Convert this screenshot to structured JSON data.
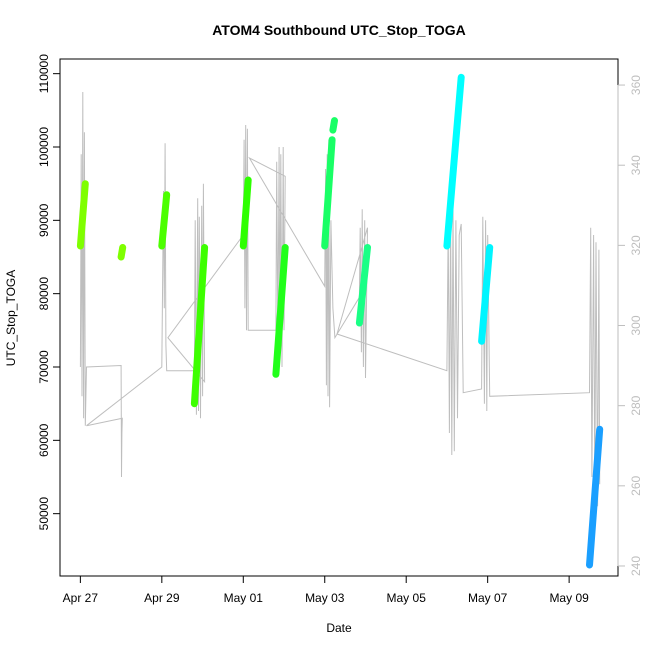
{
  "chart_data": {
    "type": "scatter",
    "title": "ATOM4 Southbound UTC_Stop_TOGA",
    "xlabel": "Date",
    "ylabel": "UTC_Stop_TOGA",
    "x_ticks": [
      "Apr 27",
      "Apr 29",
      "May 01",
      "May 03",
      "May 05",
      "May 07",
      "May 09"
    ],
    "x_tick_days": [
      0,
      2,
      4,
      6,
      8,
      10,
      12
    ],
    "xlim_days": [
      -0.5,
      13.2
    ],
    "y_ticks": [
      50000,
      60000,
      70000,
      80000,
      90000,
      100000,
      110000
    ],
    "ylim": [
      41500,
      112000
    ],
    "y2_ticks": [
      240,
      260,
      280,
      300,
      320,
      340,
      360
    ],
    "y2lim": [
      237.5,
      366.5
    ],
    "grid": false,
    "series": [
      {
        "color": "#7fff00",
        "x0": 0.0,
        "x1": 0.12,
        "y0": 86500,
        "y1": 95000
      },
      {
        "color": "#7fff00",
        "x0": 1.0,
        "x1": 1.04,
        "y0": 85000,
        "y1": 86300
      },
      {
        "color": "#4cff00",
        "x0": 2.0,
        "x1": 2.12,
        "y0": 86500,
        "y1": 93500
      },
      {
        "color": "#3dff00",
        "x0": 2.8,
        "x1": 3.05,
        "y0": 65000,
        "y1": 86300
      },
      {
        "color": "#2eff00",
        "x0": 4.0,
        "x1": 4.12,
        "y0": 86500,
        "y1": 95500
      },
      {
        "color": "#21ff1a",
        "x0": 4.8,
        "x1": 5.03,
        "y0": 69000,
        "y1": 86300
      },
      {
        "color": "#19ff66",
        "x0": 6.0,
        "x1": 6.18,
        "y0": 86500,
        "y1": 101000
      },
      {
        "color": "#19ff66",
        "x0": 6.2,
        "x1": 6.24,
        "y0": 102300,
        "y1": 103600
      },
      {
        "color": "#1aff86",
        "x0": 6.85,
        "x1": 7.05,
        "y0": 76000,
        "y1": 86300
      },
      {
        "color": "#00ffff",
        "x0": 9.0,
        "x1": 9.35,
        "y0": 86500,
        "y1": 109500
      },
      {
        "color": "#00f5ff",
        "x0": 9.85,
        "x1": 10.05,
        "y0": 73500,
        "y1": 86300
      },
      {
        "color": "#1a9fff",
        "x0": 12.5,
        "x1": 12.75,
        "y0": 43000,
        "y1": 61500
      }
    ],
    "secondary_series": {
      "color": "#bebebe",
      "points": [
        [
          0.0,
          70000
        ],
        [
          0.02,
          99000
        ],
        [
          0.04,
          66000
        ],
        [
          0.06,
          107500
        ],
        [
          0.08,
          63000
        ],
        [
          0.1,
          102000
        ],
        [
          0.12,
          62000
        ],
        [
          0.15,
          70000
        ],
        [
          1.0,
          70200
        ],
        [
          1.01,
          55000
        ],
        [
          1.02,
          61000
        ],
        [
          1.03,
          63000
        ],
        [
          0.15,
          62000
        ],
        [
          2.0,
          70000
        ],
        [
          2.04,
          94000
        ],
        [
          2.06,
          78000
        ],
        [
          2.08,
          100500
        ],
        [
          2.1,
          73000
        ],
        [
          2.12,
          69500
        ],
        [
          2.3,
          69500
        ],
        [
          2.8,
          69500
        ],
        [
          2.82,
          90000
        ],
        [
          2.85,
          63500
        ],
        [
          2.88,
          93000
        ],
        [
          2.9,
          64000
        ],
        [
          2.92,
          90500
        ],
        [
          2.95,
          63000
        ],
        [
          2.98,
          92000
        ],
        [
          3.0,
          66000
        ],
        [
          3.02,
          95000
        ],
        [
          3.05,
          68000
        ],
        [
          2.15,
          74000
        ],
        [
          4.0,
          88000
        ],
        [
          4.02,
          101000
        ],
        [
          4.04,
          78000
        ],
        [
          4.06,
          103000
        ],
        [
          4.08,
          75000
        ],
        [
          4.1,
          102500
        ],
        [
          4.12,
          75000
        ],
        [
          4.8,
          75000
        ],
        [
          4.82,
          98000
        ],
        [
          4.85,
          73000
        ],
        [
          4.88,
          100000
        ],
        [
          4.9,
          72000
        ],
        [
          4.92,
          99000
        ],
        [
          4.95,
          70000
        ],
        [
          4.98,
          100000
        ],
        [
          5.0,
          75000
        ],
        [
          5.03,
          96000
        ],
        [
          4.15,
          98500
        ],
        [
          6.0,
          81000
        ],
        [
          6.02,
          97000
        ],
        [
          6.04,
          67500
        ],
        [
          6.06,
          99000
        ],
        [
          6.08,
          66000
        ],
        [
          6.1,
          101000
        ],
        [
          6.12,
          64500
        ],
        [
          6.15,
          90000
        ],
        [
          6.2,
          78000
        ],
        [
          6.25,
          74000
        ],
        [
          6.85,
          79500
        ],
        [
          6.87,
          89000
        ],
        [
          6.9,
          72000
        ],
        [
          6.92,
          91500
        ],
        [
          6.95,
          70000
        ],
        [
          6.98,
          90000
        ],
        [
          7.0,
          68500
        ],
        [
          7.05,
          89000
        ],
        [
          6.3,
          74500
        ],
        [
          9.0,
          69500
        ],
        [
          9.03,
          89500
        ],
        [
          9.06,
          61000
        ],
        [
          9.09,
          91000
        ],
        [
          9.12,
          58000
        ],
        [
          9.15,
          92000
        ],
        [
          9.18,
          58500
        ],
        [
          9.22,
          90000
        ],
        [
          9.26,
          63000
        ],
        [
          9.3,
          88000
        ],
        [
          9.35,
          89500
        ],
        [
          9.4,
          66500
        ],
        [
          9.85,
          67000
        ],
        [
          9.88,
          90500
        ],
        [
          9.92,
          65000
        ],
        [
          9.95,
          90000
        ],
        [
          9.98,
          64000
        ],
        [
          10.0,
          88000
        ],
        [
          10.05,
          66000
        ],
        [
          12.5,
          66500
        ],
        [
          12.53,
          89000
        ],
        [
          12.56,
          55000
        ],
        [
          12.6,
          88000
        ],
        [
          12.63,
          52000
        ],
        [
          12.66,
          87000
        ],
        [
          12.7,
          51000
        ],
        [
          12.73,
          86000
        ],
        [
          12.75,
          54000
        ]
      ]
    }
  }
}
